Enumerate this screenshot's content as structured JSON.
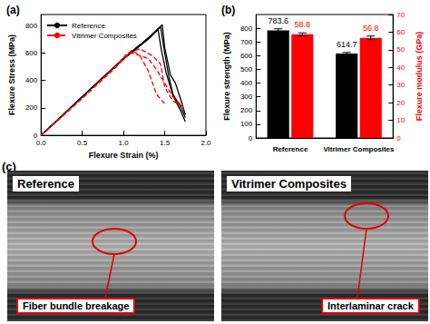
{
  "chart_data": [
    {
      "type": "line",
      "title": "(a)",
      "x_label": "Flexure Strain (%)",
      "y_label": "Flexure Stress (MPa)",
      "xlim": [
        0,
        2
      ],
      "xticks": [
        {
          "value": 0,
          "label": "0.0"
        },
        {
          "value": 0.5,
          "label": "0.5"
        },
        {
          "value": 1,
          "label": "1.0"
        },
        {
          "value": 1.5,
          "label": "1.5"
        },
        {
          "value": 2,
          "label": "2.0"
        }
      ],
      "ylim": [
        0,
        880
      ],
      "yticks": [
        0,
        200,
        400,
        600,
        800
      ],
      "legend": "upper left",
      "series": [
        {
          "name": "Reference",
          "color": "#000000",
          "line_style": "solid",
          "x": [
            0,
            0.2,
            0.4,
            0.6,
            0.8,
            1.0,
            1.2,
            1.35,
            1.45,
            1.5,
            1.55,
            1.6,
            1.7,
            1.75
          ],
          "values": [
            0,
            110,
            225,
            340,
            450,
            560,
            660,
            730,
            790,
            600,
            430,
            300,
            200,
            130
          ]
        },
        {
          "name": "Reference",
          "color": "#000000",
          "line_style": "solid",
          "x": [
            0,
            0.5,
            1.0,
            1.3,
            1.47,
            1.5,
            1.57,
            1.63,
            1.7,
            1.75
          ],
          "values": [
            0,
            280,
            560,
            710,
            805,
            640,
            440,
            380,
            250,
            150
          ]
        },
        {
          "name": "Reference",
          "color": "#000000",
          "line_style": "solid",
          "x": [
            0,
            0.5,
            1.0,
            1.3,
            1.42,
            1.46,
            1.52,
            1.6,
            1.7,
            1.75
          ],
          "values": [
            0,
            280,
            555,
            700,
            770,
            620,
            450,
            290,
            170,
            100
          ]
        },
        {
          "name": "Vitrimer Composites",
          "color": "#ff0000",
          "line_style": "dashed",
          "x": [
            0,
            0.5,
            0.9,
            1.05,
            1.2,
            1.35,
            1.45,
            1.5,
            1.6,
            1.75
          ],
          "values": [
            0,
            270,
            500,
            600,
            630,
            580,
            520,
            350,
            250,
            200
          ]
        },
        {
          "name": "Vitrimer Composites",
          "color": "#ff0000",
          "line_style": "dashed",
          "x": [
            0,
            0.5,
            0.9,
            1.0,
            1.1,
            1.3,
            1.4,
            1.5,
            1.6,
            1.7
          ],
          "values": [
            0,
            270,
            500,
            560,
            600,
            560,
            480,
            380,
            280,
            220
          ]
        },
        {
          "name": "Vitrimer Composites",
          "color": "#ff0000",
          "line_style": "dashed",
          "x": [
            0,
            0.5,
            0.9,
            1.1,
            1.2,
            1.3,
            1.4,
            1.5
          ],
          "values": [
            0,
            270,
            490,
            620,
            580,
            470,
            300,
            230
          ]
        }
      ]
    },
    {
      "type": "bar",
      "title": "(b)",
      "categories": [
        "Reference",
        "Vitrimer Composites"
      ],
      "y_label": "Flexure strength (MPa)",
      "y2_label": "Flexure modulus (GPa)",
      "ylim": [
        0,
        900
      ],
      "yticks": [
        0,
        100,
        200,
        300,
        400,
        500,
        600,
        700,
        800
      ],
      "y2lim": [
        0,
        70
      ],
      "y2ticks": [
        0,
        10,
        20,
        30,
        40,
        50,
        60,
        70
      ],
      "data_labels": true,
      "series": [
        {
          "color": "#000000",
          "values": [
            783.6,
            614.7
          ],
          "errors": [
            12,
            9
          ]
        },
        {
          "color": "#ff0000",
          "values": [
            58.8,
            56.8
          ],
          "errors": [
            0.8,
            1.0
          ],
          "axis": "y2"
        }
      ]
    }
  ],
  "panel_c": {
    "label": "(c)",
    "images": [
      {
        "title": "Reference",
        "annotation": "Fiber bundle breakage"
      },
      {
        "title": "Vitrimer Composites",
        "annotation": "Interlaminar crack"
      }
    ]
  }
}
